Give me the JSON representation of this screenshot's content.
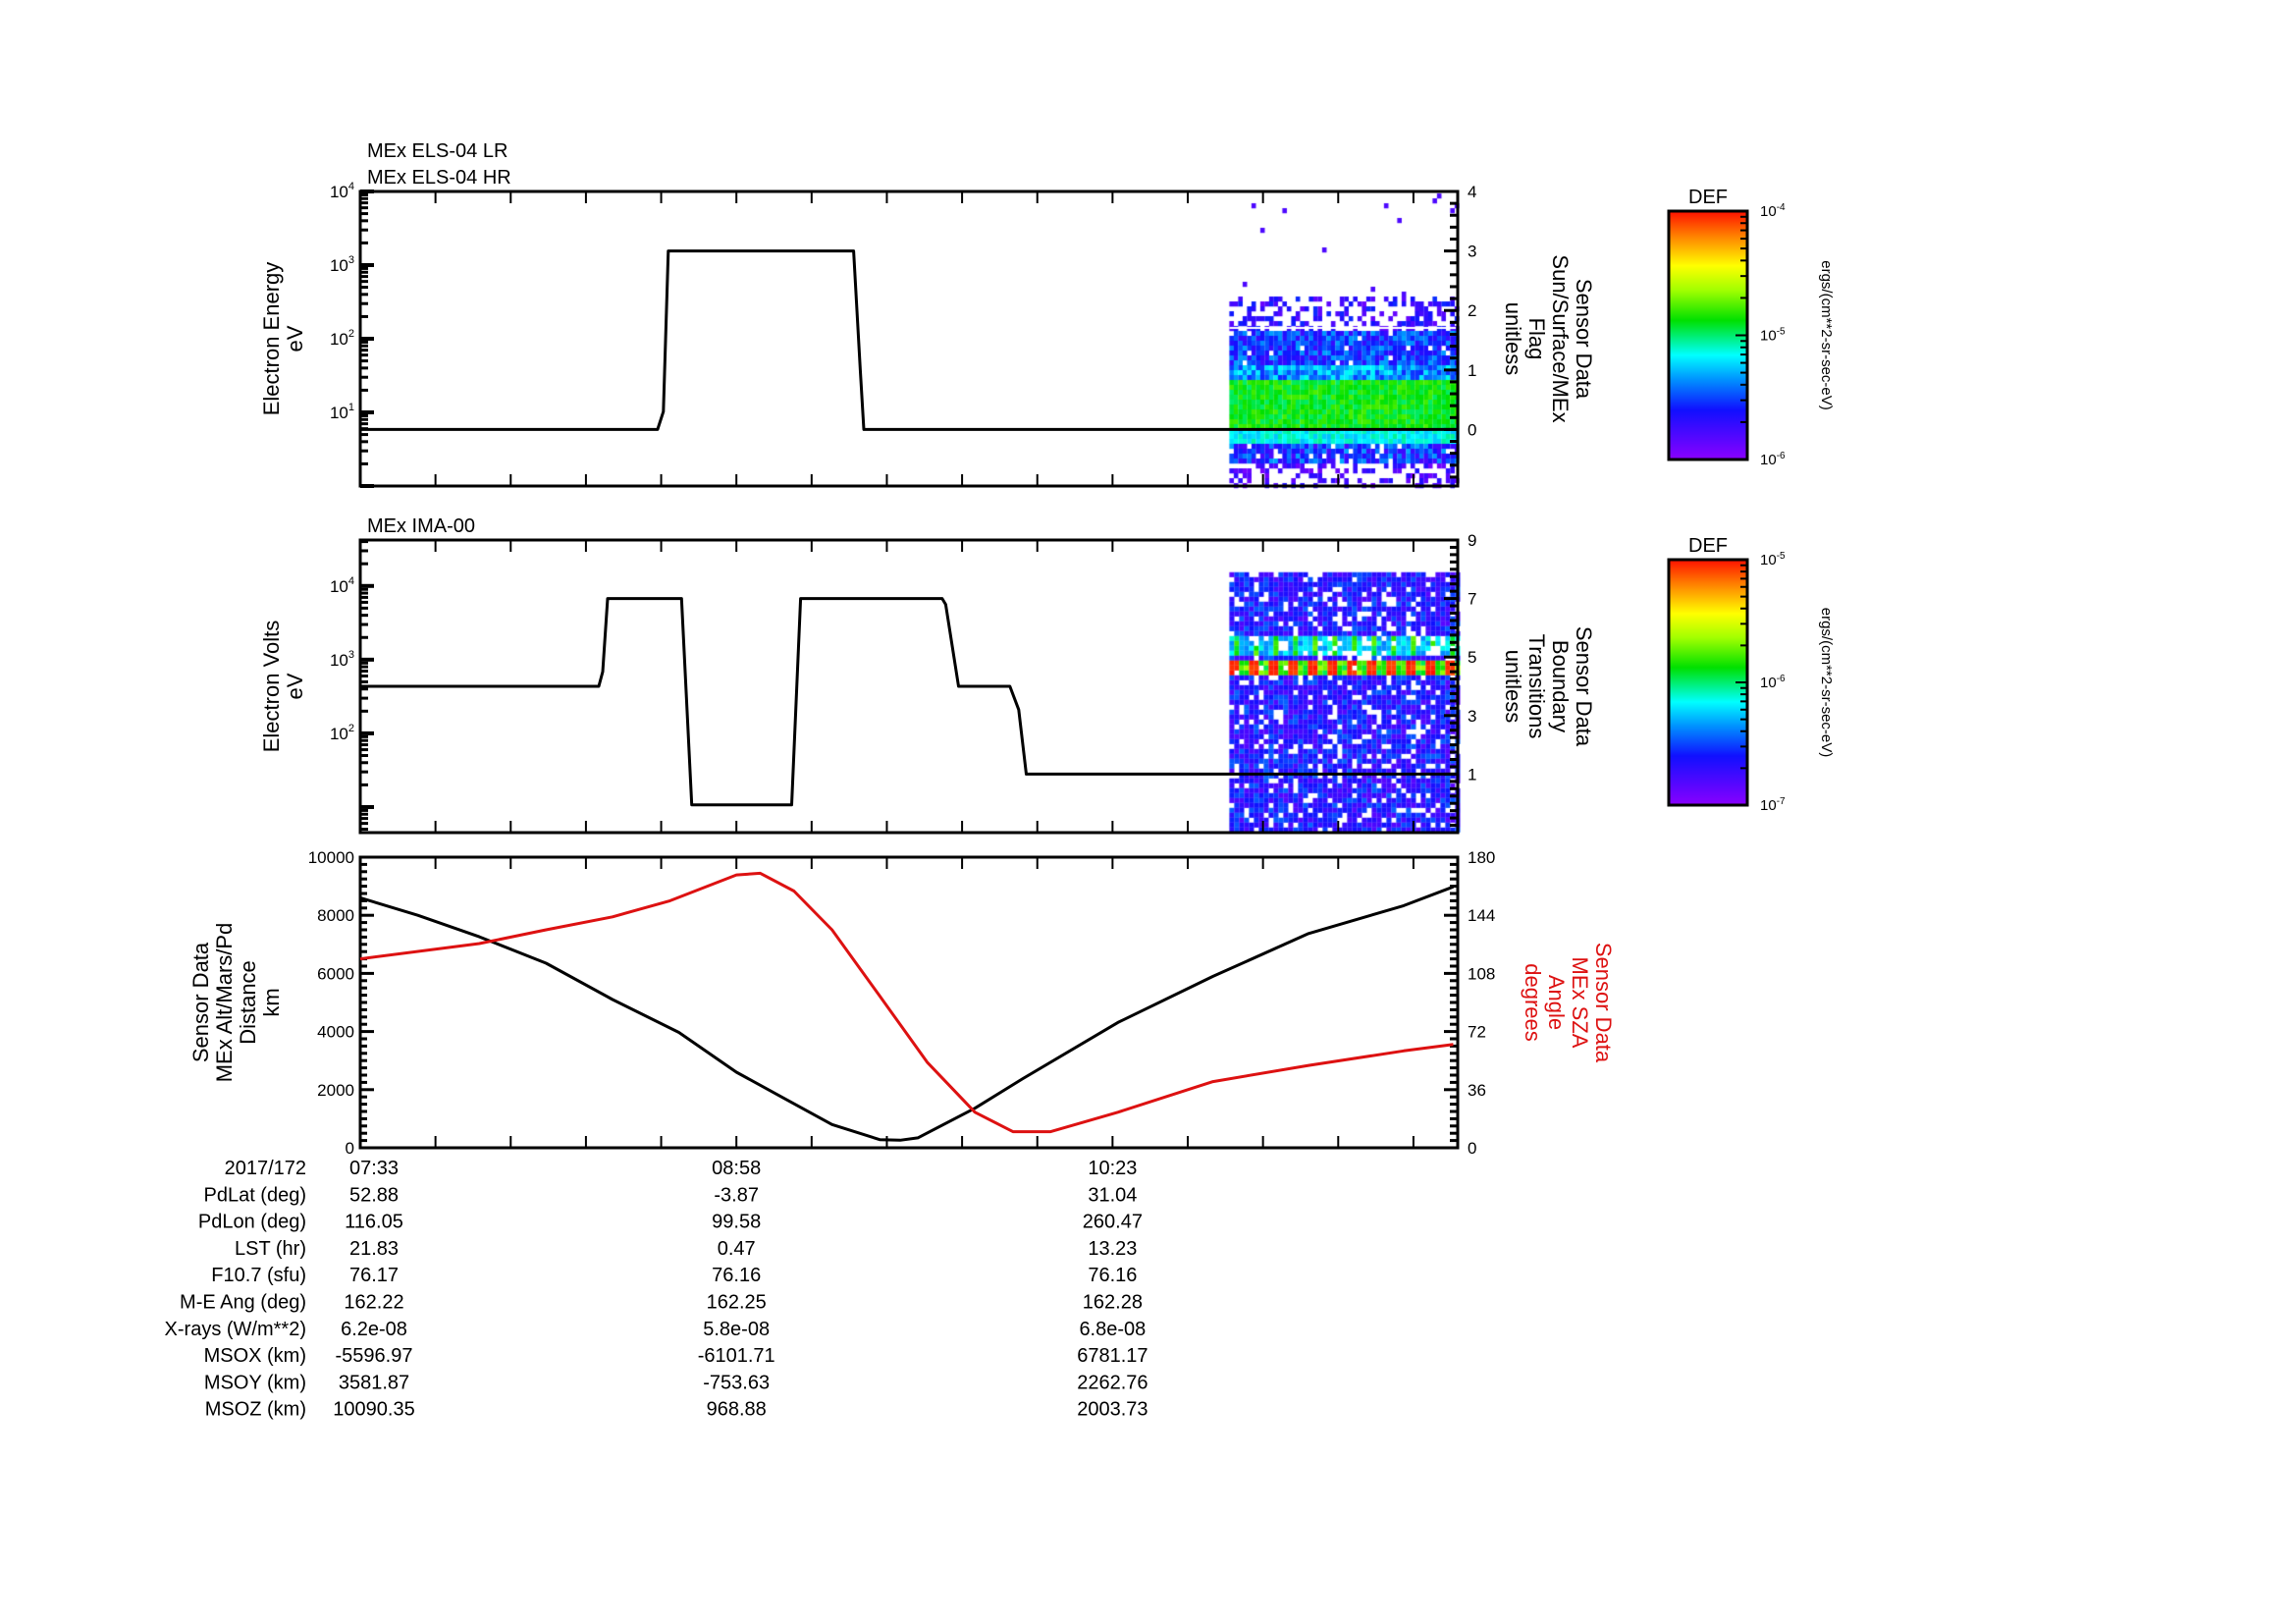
{
  "chart_data": [
    {
      "type": "line",
      "panel": "els",
      "title_lines": [
        "MEx ELS-04 LR",
        "MEx ELS-04 HR"
      ],
      "x_unit": "minutes since 07:33 (2017/172)",
      "xlim": [
        0,
        248
      ],
      "ylabel_left": [
        "Electron Energy",
        "eV"
      ],
      "yscale_left": "log",
      "ylim_left": [
        1,
        10000
      ],
      "yticks_left": [
        {
          "base": "10",
          "exp": "4",
          "value": 10000
        },
        {
          "base": "10",
          "exp": "3",
          "value": 1000
        },
        {
          "base": "10",
          "exp": "2",
          "value": 100
        },
        {
          "base": "10",
          "exp": "1",
          "value": 10
        }
      ],
      "ylabel_right": [
        "Sensor Data",
        "Sun/Surface/MEx",
        "Flag",
        "unitless"
      ],
      "ylim_right": [
        -0.95,
        4
      ],
      "yticks_right": [
        "4",
        "3",
        "2",
        "1",
        "0"
      ],
      "yticks_right_values": [
        4,
        3,
        2,
        1,
        0
      ],
      "series": [
        {
          "name": "Sun/Surface/MEx Flag",
          "color": "#000000",
          "t": [
            0,
            67.2,
            68.5,
            69.6,
            111.5,
            113.0,
            113.8,
            248
          ],
          "v": [
            0,
            0,
            0.3,
            3,
            3,
            1.0,
            0,
            0
          ]
        }
      ],
      "spectrogram": {
        "t_range": [
          196.4,
          248
        ],
        "log_energy_range": [
          0,
          2.6
        ],
        "peak_log_energy": [
          0.8,
          1.44
        ]
      },
      "colorbar": {
        "label": "DEF",
        "ticks": [
          {
            "base": "10",
            "exp": "-4"
          },
          {
            "base": "10",
            "exp": "-5"
          },
          {
            "base": "10",
            "exp": "-6"
          }
        ],
        "range": [
          1e-06,
          0.0001
        ],
        "units": "ergs/(cm**2-sr-sec-eV)"
      }
    },
    {
      "type": "line",
      "panel": "ima",
      "title_lines": [
        "MEx IMA-00"
      ],
      "xlim": [
        0,
        248
      ],
      "ylabel_left": [
        "Electron Volts",
        "eV"
      ],
      "yscale_left": "log",
      "ylim_left": [
        4.5,
        42000
      ],
      "yticks_left": [
        {
          "base": "10",
          "exp": "4",
          "value": 10000
        },
        {
          "base": "10",
          "exp": "3",
          "value": 1000
        },
        {
          "base": "10",
          "exp": "2",
          "value": 100
        }
      ],
      "ylabel_right": [
        "Sensor Data",
        "Boundary",
        "Transitions",
        "unitless"
      ],
      "ylim_right": [
        -1,
        9
      ],
      "yticks_right": [
        "9",
        "7",
        "5",
        "3",
        "1"
      ],
      "yticks_right_values": [
        9,
        7,
        5,
        3,
        1
      ],
      "series": [
        {
          "name": "Boundary Transitions",
          "color": "#000000",
          "t": [
            0,
            53.9,
            54.8,
            55.9,
            72.6,
            74.9,
            97.5,
            99.5,
            131.5,
            132.3,
            135.2,
            146.8,
            148.8,
            150.5,
            248
          ],
          "v": [
            4,
            4,
            4.5,
            7,
            7,
            -0.05,
            -0.05,
            7,
            7,
            6.8,
            4,
            4,
            3.2,
            1,
            1
          ]
        }
      ],
      "spectrogram": {
        "t_range": [
          196.4,
          248
        ],
        "value_range": [
          -1,
          7.9
        ],
        "red_band_value": 4.7,
        "green_band_value": 5.5
      },
      "colorbar": {
        "label": "DEF",
        "ticks": [
          {
            "base": "10",
            "exp": "-5"
          },
          {
            "base": "10",
            "exp": "-6"
          },
          {
            "base": "10",
            "exp": "-7"
          }
        ],
        "range": [
          1e-07,
          1e-05
        ],
        "units": "ergs/(cm**2-sr-sec-eV)"
      }
    },
    {
      "type": "line",
      "panel": "orbit",
      "xlim": [
        0,
        248
      ],
      "ylabel_left": [
        "Sensor Data",
        "MEx Alt/Mars/Pd",
        "Distance",
        "km"
      ],
      "ylim_left": [
        0,
        10000
      ],
      "yticks_left": [
        "10000",
        "8000",
        "6000",
        "4000",
        "2000",
        "0"
      ],
      "yticks_left_values": [
        10000,
        8000,
        6000,
        4000,
        2000,
        0
      ],
      "ylabel_right": [
        "Sensor Data",
        "MEx SZA",
        "Angle",
        "degrees"
      ],
      "ylim_right": [
        0,
        180
      ],
      "yticks_right": [
        "180",
        "144",
        "108",
        "72",
        "36",
        "0"
      ],
      "yticks_right_values": [
        180,
        144,
        108,
        72,
        36,
        0
      ],
      "series": [
        {
          "name": "MEx Alt/Mars/Pd Distance (km)",
          "axis": "left",
          "color": "#000000",
          "t": [
            0,
            13,
            26.9,
            42,
            57,
            72,
            85,
            95.8,
            106.6,
            117.4,
            122,
            126,
            138.9,
            149.7,
            171.2,
            192.7,
            214.3,
            235.8,
            247
          ],
          "v": [
            8600,
            8000,
            7260,
            6350,
            5100,
            3970,
            2600,
            1700,
            800,
            280,
            260,
            340,
            1360,
            2380,
            4310,
            5900,
            7370,
            8330,
            8980
          ]
        },
        {
          "name": "MEx SZA Angle (degrees)",
          "axis": "right",
          "color": "#dd1111",
          "t": [
            0,
            26.9,
            42,
            57,
            70,
            85,
            90.4,
            98,
            106.6,
            117.4,
            128.1,
            138.9,
            147.5,
            156,
            171.2,
            192.7,
            214.3,
            235.8,
            247
          ],
          "v": [
            117,
            126.5,
            135,
            143,
            153,
            169,
            170,
            159,
            135,
            94,
            53,
            22,
            10,
            10,
            22,
            41,
            51,
            60,
            64
          ]
        }
      ]
    }
  ],
  "x_axis": {
    "date": "2017/172",
    "tick_labels": [
      "07:33",
      "08:58",
      "10:23"
    ],
    "tick_values": [
      0,
      85,
      170
    ],
    "minor_step": 17
  },
  "ephemeris": [
    {
      "label": "PdLat (deg)",
      "values": [
        "52.88",
        "-3.87",
        "31.04"
      ]
    },
    {
      "label": "PdLon (deg)",
      "values": [
        "116.05",
        "99.58",
        "260.47"
      ]
    },
    {
      "label": "LST (hr)",
      "values": [
        "21.83",
        "0.47",
        "13.23"
      ]
    },
    {
      "label": "F10.7 (sfu)",
      "values": [
        "76.17",
        "76.16",
        "76.16"
      ]
    },
    {
      "label": "M-E Ang (deg)",
      "values": [
        "162.22",
        "162.25",
        "162.28"
      ]
    },
    {
      "label": "X-rays (W/m**2)",
      "values": [
        "6.2e-08",
        "5.8e-08",
        "6.8e-08"
      ]
    },
    {
      "label": "MSOX (km)",
      "values": [
        "-5596.97",
        "-6101.71",
        "6781.17"
      ]
    },
    {
      "label": "MSOY (km)",
      "values": [
        "3581.87",
        "-753.63",
        "2262.76"
      ]
    },
    {
      "label": "MSOZ (km)",
      "values": [
        "10090.35",
        "968.88",
        "2003.73"
      ]
    }
  ]
}
